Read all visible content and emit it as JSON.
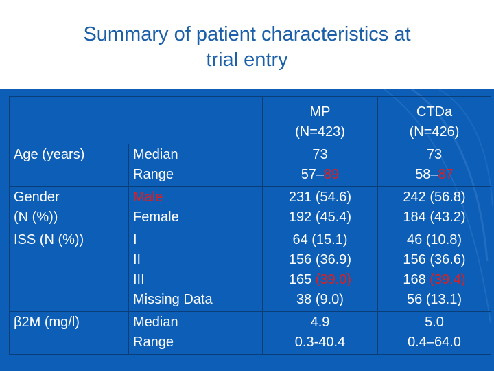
{
  "title": {
    "line1": "Summary of patient characteristics at",
    "line2": "trial entry"
  },
  "colors": {
    "title": "#1a5fa8",
    "panel": "#0c5eb6",
    "text": "#ffffff",
    "highlight": "#e01e1e",
    "grid": "#0a3e78"
  },
  "table": {
    "headers": {
      "mp": {
        "name": "MP",
        "n": "(N=423)"
      },
      "ctda": {
        "name": "CTDa",
        "n": "(N=426)"
      }
    },
    "age": {
      "label": "Age (years)",
      "sub": [
        "Median",
        "Range"
      ],
      "mp": {
        "median": "73",
        "range_low": "57–",
        "range_high": "89"
      },
      "ctda": {
        "median": "73",
        "range_low": "58–",
        "range_high": "87"
      }
    },
    "gender": {
      "label_line1": "Gender",
      "label_line2": "(N (%))",
      "sub": [
        "Male",
        "Female"
      ],
      "mp": [
        "231 (54.6)",
        "192 (45.4)"
      ],
      "ctda": [
        "242 (56.8)",
        "184 (43.2)"
      ]
    },
    "iss": {
      "label": "ISS (N (%))",
      "sub": [
        "I",
        "II",
        "III",
        "Missing Data"
      ],
      "mp": {
        "i": "64 (15.1)",
        "ii": "156 (36.9)",
        "iii_n": "165 ",
        "iii_pct": "(39.0)",
        "missing": "38 (9.0)"
      },
      "ctda": {
        "i": "46 (10.8)",
        "ii": "156 (36.6)",
        "iii_n": "168 ",
        "iii_pct": "(39.4)",
        "missing": "56 (13.1)"
      }
    },
    "b2m": {
      "label": "β2M (mg/l)",
      "sub": [
        "Median",
        "Range"
      ],
      "mp": [
        "4.9",
        "0.3-40.4"
      ],
      "ctda": [
        "5.0",
        "0.4–64.0"
      ]
    }
  }
}
